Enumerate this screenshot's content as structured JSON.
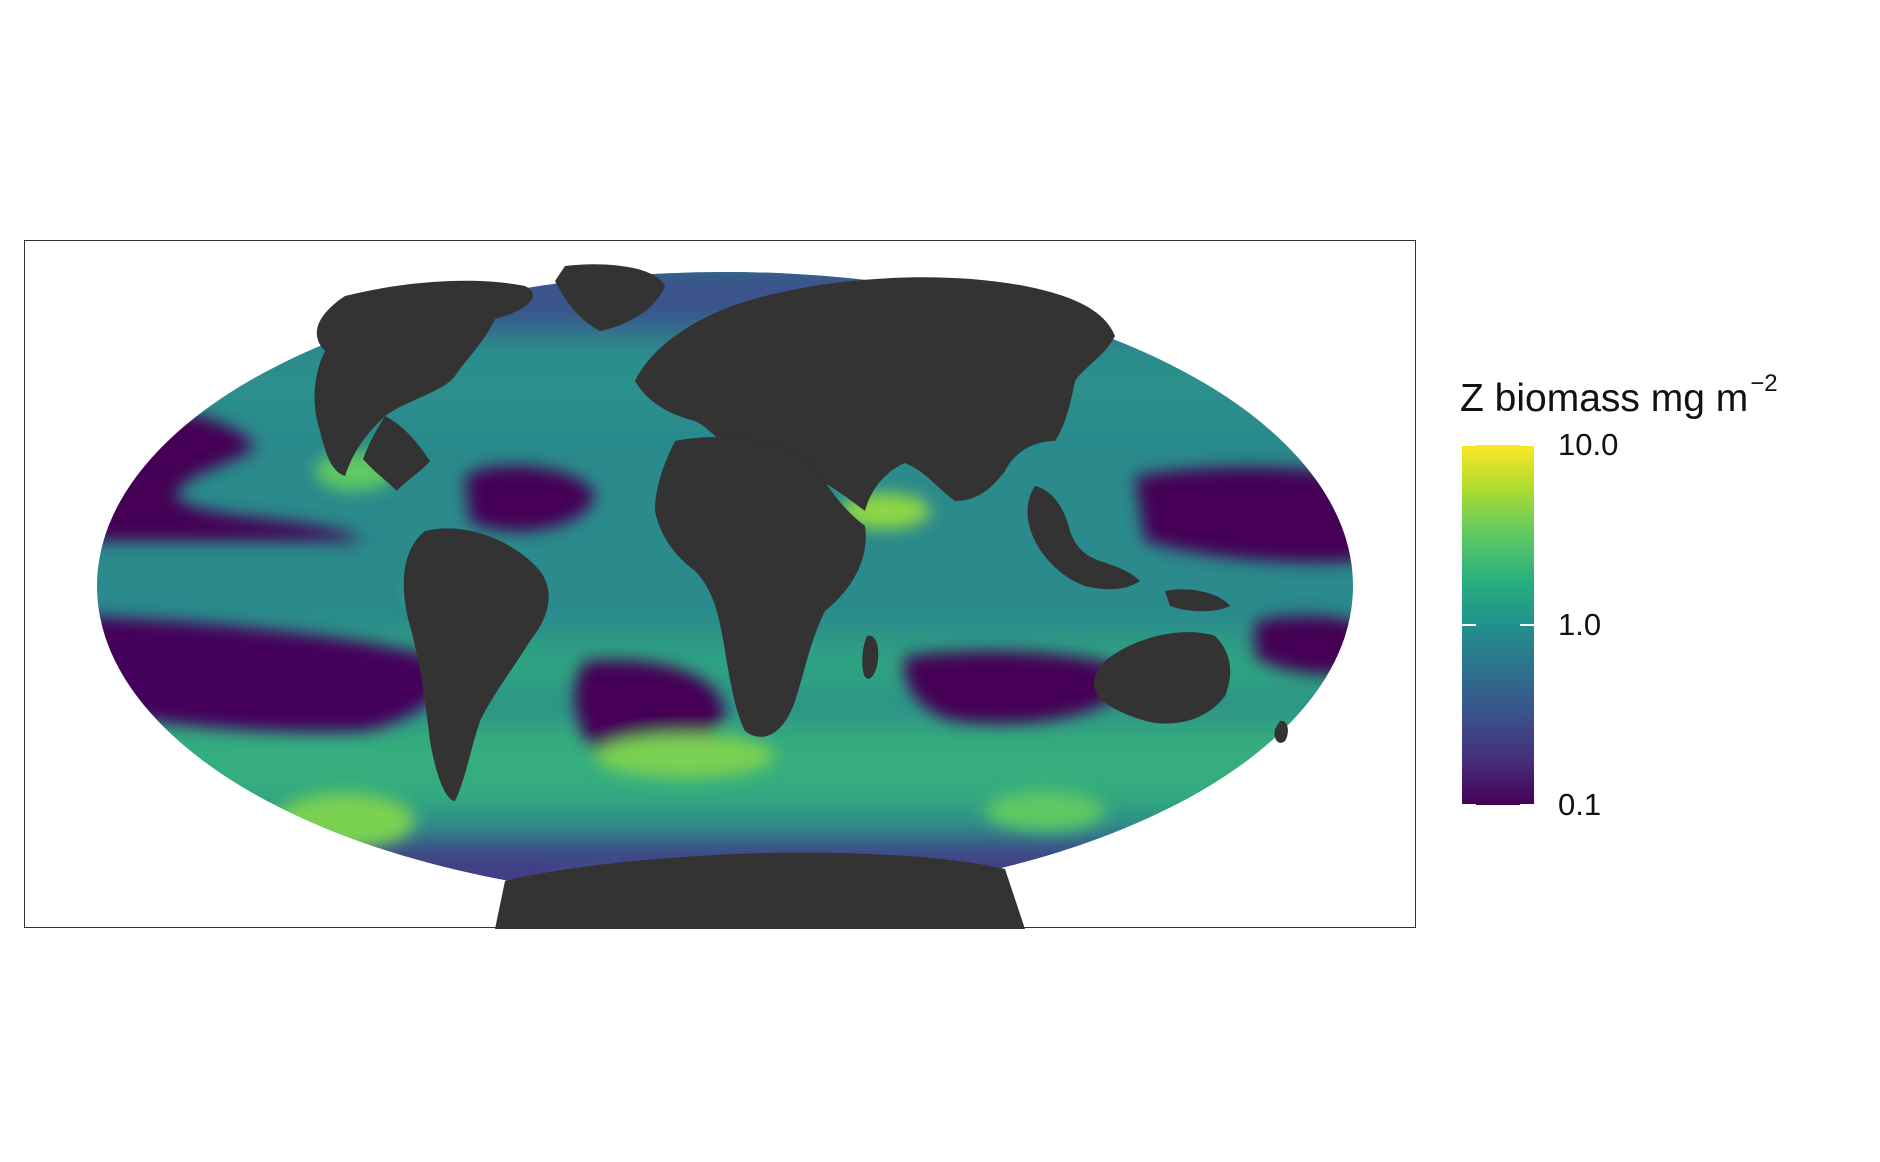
{
  "colors": {
    "land": "#333333",
    "ocean_scale": [
      "#440154",
      "#472d7b",
      "#3b528b",
      "#2c728e",
      "#21918c",
      "#28ae80",
      "#5ec962",
      "#addc30",
      "#fde725"
    ]
  },
  "legend": {
    "title": "Z biomass mg m",
    "title_superscript": "−2",
    "scale": "log",
    "range": [
      0.1,
      10.0
    ],
    "ticks": [
      {
        "label": "10.0",
        "value": 10.0
      },
      {
        "label": "1.0",
        "value": 1.0
      },
      {
        "label": "0.1",
        "value": 0.1
      }
    ]
  }
}
